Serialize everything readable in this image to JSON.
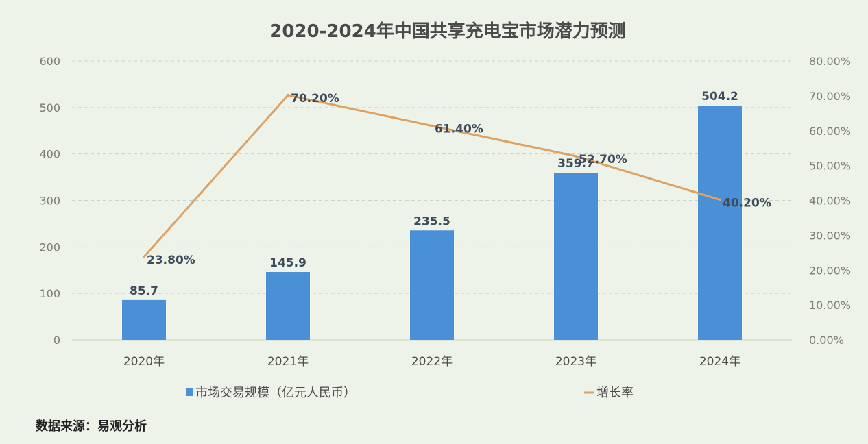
{
  "chart_data": {
    "type": "bar",
    "title": "2020-2024年中国共享充电宝市场潜力预测",
    "categories": [
      "2020年",
      "2021年",
      "2022年",
      "2023年",
      "2024年"
    ],
    "series": [
      {
        "name": "市场交易规模（亿元人民币）",
        "type": "bar",
        "axis": "left",
        "values": [
          85.7,
          145.9,
          235.5,
          359.7,
          504.2
        ],
        "labels": [
          "85.7",
          "145.9",
          "235.5",
          "359.7",
          "504.2"
        ],
        "color": "#4a90d6"
      },
      {
        "name": "增长率",
        "type": "line",
        "axis": "right",
        "values": [
          23.8,
          70.2,
          61.4,
          52.7,
          40.2
        ],
        "labels": [
          "23.80%",
          "70.20%",
          "61.40%",
          "52.70%",
          "40.20%"
        ],
        "color": "#e0a060"
      }
    ],
    "y_left": {
      "ylim": [
        0,
        600
      ],
      "ticks": [
        "0",
        "100",
        "200",
        "300",
        "400",
        "500",
        "600"
      ]
    },
    "y_right": {
      "ylim": [
        0,
        80
      ],
      "ticks": [
        "0.00%",
        "10.00%",
        "20.00%",
        "30.00%",
        "40.00%",
        "50.00%",
        "60.00%",
        "70.00%",
        "80.00%"
      ]
    },
    "grid": true,
    "legend_position": "bottom"
  },
  "source_note": "数据来源：易观分析"
}
